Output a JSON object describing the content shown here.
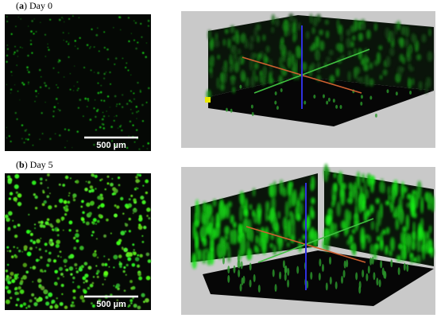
{
  "panels": [
    {
      "title_parts": [
        "(",
        "a",
        ") Day 0"
      ],
      "scale_bar": "500 µm"
    },
    {
      "title_parts": [
        "(",
        "b",
        ") Day 5"
      ],
      "scale_bar": "500 µm"
    }
  ]
}
